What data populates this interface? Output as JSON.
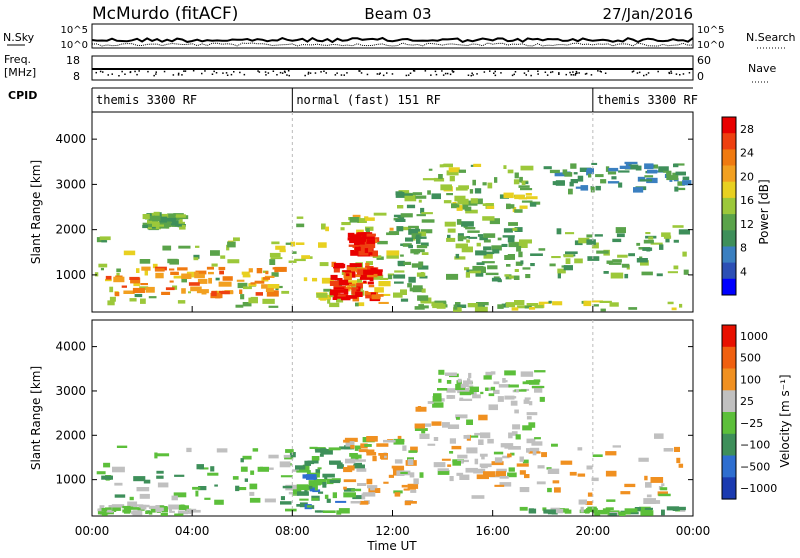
{
  "header": {
    "station": "McMurdo (fitACF)",
    "beam": "Beam 03",
    "date": "27/Jan/2016"
  },
  "top_panels": {
    "nsky_label": "N.Sky",
    "nsky_ticks": [
      "10^5",
      "10^0"
    ],
    "nsearch_label": "N.Search",
    "nsearch_ticks": [
      "10^5",
      "10^0"
    ],
    "freq_label_1": "Freq.",
    "freq_label_2": "[MHz]",
    "freq_ticks": [
      "18",
      "8"
    ],
    "nave_label": "Nave",
    "nave_ticks": [
      "60",
      "0"
    ],
    "cpid_label": "CPID",
    "cpid_segments": [
      {
        "label": "themis 3300 RF",
        "start": 0,
        "end": 8
      },
      {
        "label": "normal (fast) 151 RF",
        "start": 8,
        "end": 20
      },
      {
        "label": "themis 3300 RF",
        "start": 20,
        "end": 24
      }
    ]
  },
  "chart_data": [
    {
      "type": "heatmap",
      "title": "",
      "xlabel": "Time UT",
      "ylabel": "Slant Range [km]",
      "x_ticks": [
        "00:00",
        "04:00",
        "08:00",
        "12:00",
        "16:00",
        "20:00",
        "00:00"
      ],
      "y_ticks": [
        "1000",
        "2000",
        "3000",
        "4000"
      ],
      "xlim": [
        0,
        24
      ],
      "ylim": [
        180,
        4600
      ],
      "colorbar": {
        "label": "Power [dB]",
        "ticks": [
          "4",
          "8",
          "12",
          "16",
          "20",
          "24",
          "28"
        ],
        "colors": [
          "#0000ff",
          "#2c4fb5",
          "#3a7fc0",
          "#3e8f5a",
          "#5aa34a",
          "#9cc83a",
          "#e8d020",
          "#f2a020",
          "#f07a10",
          "#ee4010",
          "#e80000"
        ],
        "range": [
          0,
          30
        ]
      },
      "regions": [
        {
          "t0": 0.1,
          "t1": 8.0,
          "r0": 300,
          "r1": 1900,
          "value": 14
        },
        {
          "t0": 0.5,
          "t1": 7.5,
          "r0": 600,
          "r1": 1200,
          "value": 22
        },
        {
          "t0": 2.0,
          "t1": 3.5,
          "r0": 2100,
          "r1": 2400,
          "value": 12
        },
        {
          "t0": 8.0,
          "t1": 12.0,
          "r0": 300,
          "r1": 2400,
          "value": 16
        },
        {
          "t0": 9.5,
          "t1": 11.2,
          "r0": 500,
          "r1": 1300,
          "value": 27
        },
        {
          "t0": 10.2,
          "t1": 11.0,
          "r0": 1500,
          "r1": 1950,
          "value": 28
        },
        {
          "t0": 12.0,
          "t1": 13.2,
          "r0": 300,
          "r1": 2900,
          "value": 12
        },
        {
          "t0": 13.2,
          "t1": 17.5,
          "r0": 2400,
          "r1": 3500,
          "value": 14
        },
        {
          "t0": 14.0,
          "t1": 17.0,
          "r0": 900,
          "r1": 2300,
          "value": 12
        },
        {
          "t0": 13.0,
          "t1": 24.0,
          "r0": 180,
          "r1": 450,
          "value": 14
        },
        {
          "t0": 17.0,
          "t1": 24.0,
          "r0": 1000,
          "r1": 2100,
          "value": 12
        },
        {
          "t0": 18.0,
          "t1": 24.0,
          "r0": 2900,
          "r1": 3500,
          "value": 10
        }
      ]
    },
    {
      "type": "heatmap",
      "title": "",
      "xlabel": "Time UT",
      "ylabel": "Slant Range [km]",
      "x_ticks": [
        "00:00",
        "04:00",
        "08:00",
        "12:00",
        "16:00",
        "20:00",
        "00:00"
      ],
      "y_ticks": [
        "1000",
        "2000",
        "3000",
        "4000"
      ],
      "xlim": [
        0,
        24
      ],
      "ylim": [
        180,
        4600
      ],
      "colorbar": {
        "label": "Velocity [m s⁻¹]",
        "ticks": [
          "1000",
          "500",
          "100",
          "25",
          "−25",
          "−100",
          "−500",
          "−1000"
        ],
        "colors": [
          "#1a3ab0",
          "#2e6ed0",
          "#3e8f5a",
          "#5cbf3a",
          "#c0c0c0",
          "#f09020",
          "#f06010",
          "#e81000"
        ],
        "range": [
          -1000,
          1000
        ]
      },
      "regions": [
        {
          "t0": 0.1,
          "t1": 8.0,
          "r0": 300,
          "r1": 1800,
          "value": 150
        },
        {
          "t0": 0.2,
          "t1": 4.0,
          "r0": 180,
          "r1": 450,
          "value": 0
        },
        {
          "t0": 8.0,
          "t1": 10.5,
          "r0": 300,
          "r1": 1800,
          "value": 300
        },
        {
          "t0": 10.0,
          "t1": 12.8,
          "r0": 500,
          "r1": 2000,
          "value": -200
        },
        {
          "t0": 12.8,
          "t1": 17.5,
          "r0": 1000,
          "r1": 2800,
          "value": -150
        },
        {
          "t0": 13.5,
          "t1": 18.0,
          "r0": 2800,
          "r1": 3500,
          "value": 0
        },
        {
          "t0": 15.0,
          "t1": 24.0,
          "r0": 500,
          "r1": 2100,
          "value": -200
        },
        {
          "t0": 17.0,
          "t1": 24.0,
          "r0": 180,
          "r1": 400,
          "value": 120
        }
      ]
    }
  ]
}
